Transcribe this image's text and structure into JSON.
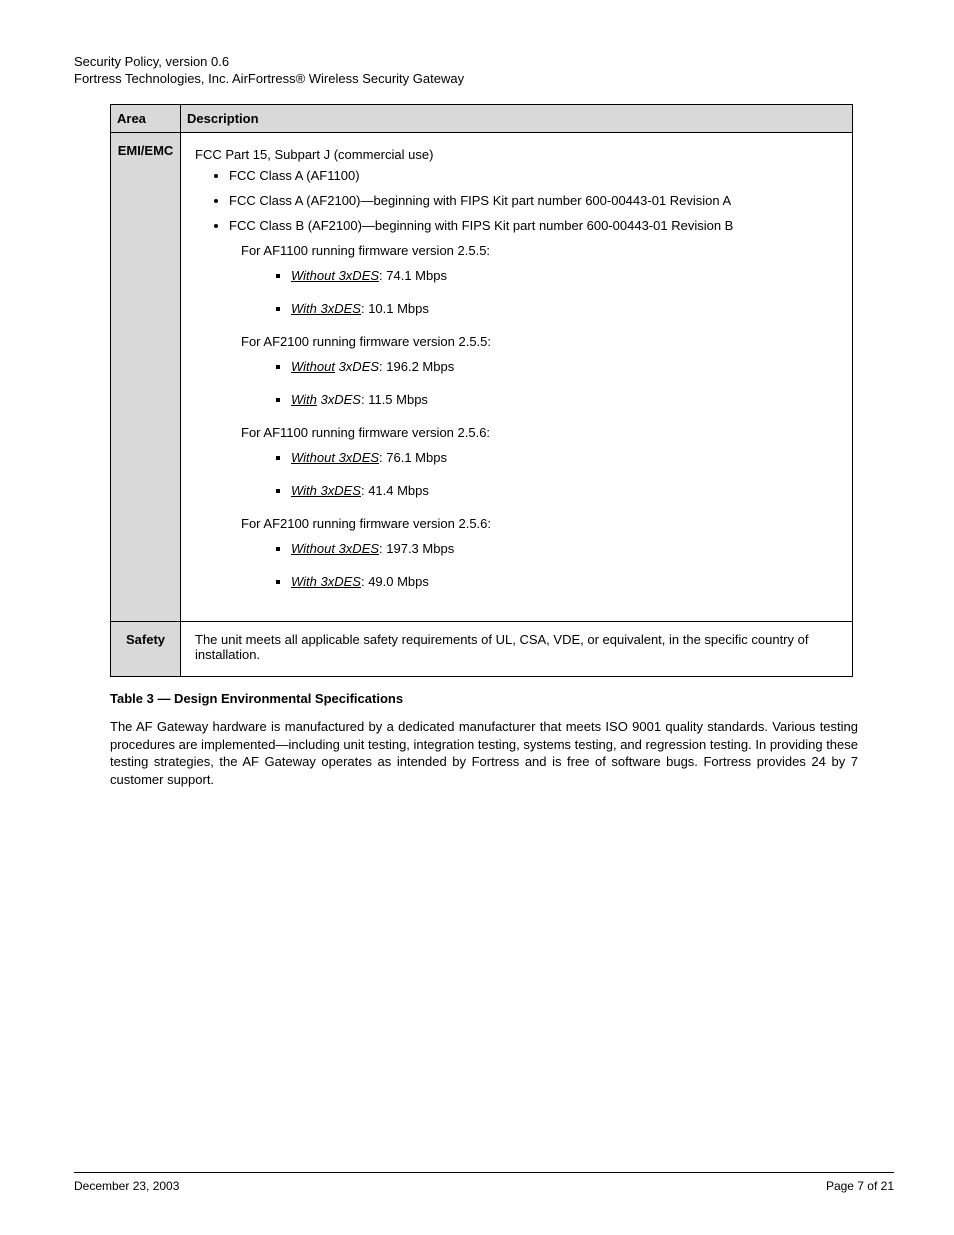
{
  "header": {
    "title_line": "Security Policy, version 0.6",
    "subtitle_line": "Fortress Technologies, Inc. AirFortress® Wireless Security Gateway"
  },
  "table": {
    "head": {
      "col1": "Area",
      "col2": "Description"
    },
    "row1": {
      "label": "EMI/EMC",
      "lead": "FCC Part 15, Subpart J (commercial use)",
      "bullets": [
        "FCC Class A (AF1100)",
        "FCC Class A (AF2100)—beginning with FIPS Kit part number 600-00443-01 Revision A",
        "FCC Class B (AF2100)—beginning with FIPS Kit part number 600-00443-01 Revision B"
      ],
      "groups": [
        {
          "intro": "For AF1100 running firmware version 2.5.5:",
          "items": [
            {
              "label_under_ital": "Without 3xDES",
              "tail": ": 74.1 Mbps"
            },
            {
              "label_under_ital": "With 3xDES",
              "tail": ": 10.1 Mbps"
            }
          ]
        },
        {
          "intro": "For AF2100 running firmware version 2.5.5:",
          "items": [
            {
              "label_under": "Without",
              "label_ital_rest": " 3xDES",
              "tail": ": 196.2 Mbps"
            },
            {
              "label_under": "With",
              "label_ital_rest": " 3xDES",
              "tail": ": 11.5 Mbps"
            }
          ]
        },
        {
          "intro": "For AF1100 running firmware version 2.5.6:",
          "items": [
            {
              "label_under_ital": "Without 3xDES",
              "tail": ": 76.1 Mbps"
            },
            {
              "label_under_ital": "With 3xDES",
              "tail": ": 41.4 Mbps"
            }
          ]
        },
        {
          "intro": "For AF2100 running firmware version 2.5.6:",
          "items": [
            {
              "label_under_ital": "Without 3xDES",
              "tail": ": 197.3 Mbps"
            },
            {
              "label_under_ital": "With 3xDES",
              "tail": ": 49.0 Mbps"
            }
          ]
        }
      ]
    },
    "row2": {
      "label": "Safety",
      "content": "The unit meets all applicable safety requirements of UL, CSA, VDE, or equivalent, in the specific country of installation."
    }
  },
  "caption": "Table 3 — Design Environmental Specifications",
  "paragraph": "The AF Gateway hardware is manufactured by a dedicated manufacturer that meets ISO 9001 quality standards. Various testing procedures are implemented—including unit testing, integration testing, systems testing, and regression testing. In providing these testing strategies, the AF Gateway operates as intended by Fortress and is free of software bugs. Fortress provides 24 by 7 customer support.",
  "footer": {
    "left": "December 23, 2003",
    "right": "Page 7 of 21"
  }
}
